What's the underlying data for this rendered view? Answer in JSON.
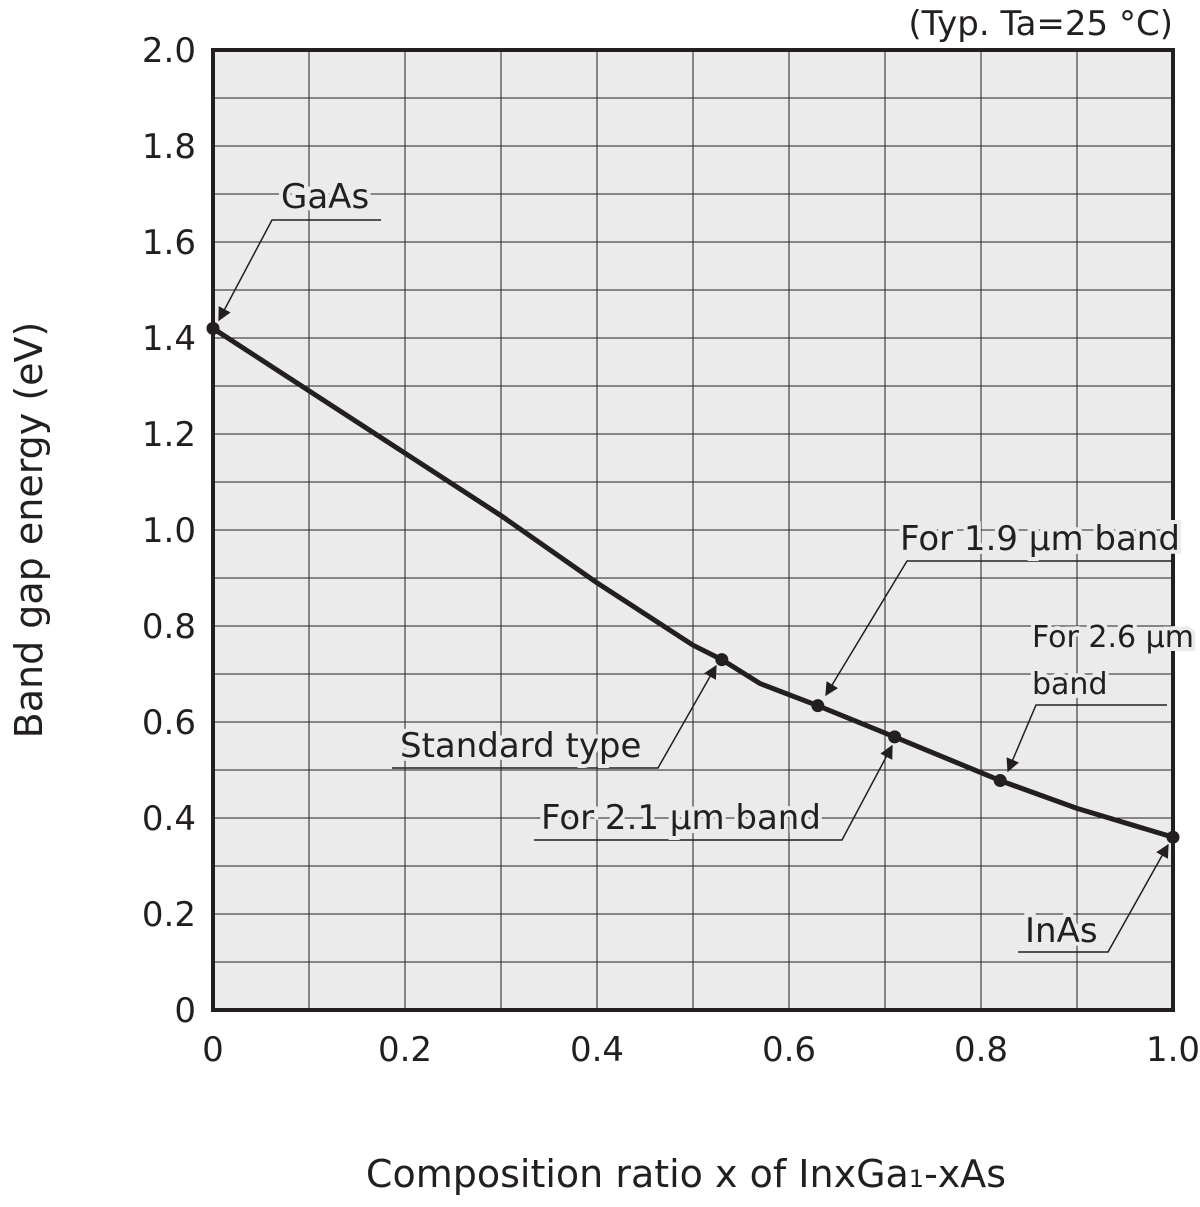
{
  "chart_data": {
    "type": "line",
    "condition": "(Typ. Ta=25 °C)",
    "xlabel": "Composition ratio x of InxGa1-xAs",
    "xlabel_parts": {
      "main": "Composition ratio x of InxGa",
      "sub": "1",
      "tail": "-xAs"
    },
    "ylabel": "Band gap energy (eV)",
    "xlim": [
      0,
      1.0
    ],
    "ylim": [
      0,
      2.0
    ],
    "grid": true,
    "x_ticks": [
      "0",
      "0.2",
      "0.4",
      "0.6",
      "0.8",
      "1.0"
    ],
    "x_tick_values": [
      0,
      0.2,
      0.4,
      0.6,
      0.8,
      1.0
    ],
    "y_ticks": [
      "0",
      "0.2",
      "0.4",
      "0.6",
      "0.8",
      "1.0",
      "1.2",
      "1.4",
      "1.6",
      "1.8",
      "2.0"
    ],
    "y_tick_values": [
      0,
      0.2,
      0.4,
      0.6,
      0.8,
      1.0,
      1.2,
      1.4,
      1.6,
      1.8,
      2.0
    ],
    "series": [
      {
        "x": [
          0,
          0.1,
          0.2,
          0.3,
          0.4,
          0.5,
          0.53,
          0.57,
          0.63,
          0.71,
          0.82,
          0.9,
          1.0
        ],
        "y": [
          1.42,
          1.29,
          1.16,
          1.03,
          0.89,
          0.76,
          0.73,
          0.68,
          0.634,
          0.569,
          0.478,
          0.42,
          0.36
        ]
      }
    ],
    "points": [
      {
        "label": "GaAs",
        "x": 0,
        "y": 1.42
      },
      {
        "label": "Standard type",
        "x": 0.53,
        "y": 0.73
      },
      {
        "label": "For 1.9 µm band",
        "x": 0.63,
        "y": 0.634
      },
      {
        "label": "For 2.1 µm band",
        "x": 0.71,
        "y": 0.569
      },
      {
        "label": "For 2.6 µm band",
        "x": 0.82,
        "y": 0.478
      },
      {
        "label": "InAs",
        "x": 1.0,
        "y": 0.36
      }
    ],
    "annotations": {
      "gaas": "GaAs",
      "standard": "Standard type",
      "band19": "For 1.9 µm band",
      "band21": "For 2.1 µm band",
      "band26_line1": "For 2.6 µm",
      "band26_line2": "band",
      "inas": "InAs"
    }
  }
}
